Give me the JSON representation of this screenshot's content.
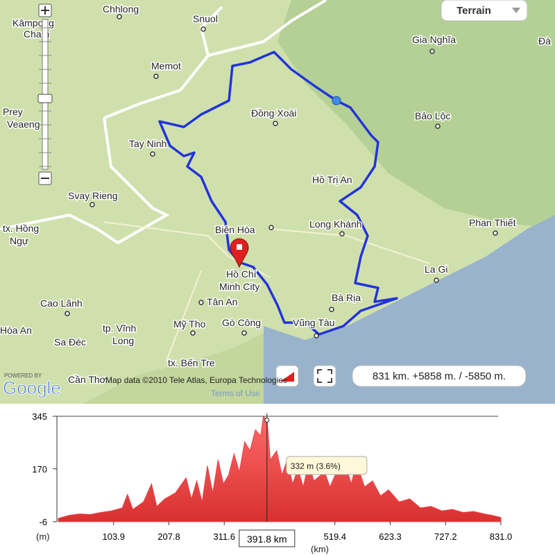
{
  "map": {
    "type_button": "Terrain",
    "labels": [
      "Chhlong",
      "Snuol",
      "Kâmpong",
      "Cham",
      "Memot",
      "Gia Nghĩa",
      "Đà",
      "Prey",
      "Veaeng",
      "Đồng Xoài",
      "Bảo Lộc",
      "Tay Ninh",
      "Hồ Trị An",
      "Svay Rieng",
      "tx. Hồng",
      "Ngự",
      "Biên Hòa",
      "Long Khánh",
      "Phan Thiết",
      "Hồ Chí",
      "Minh City",
      "La Gi",
      "Cao Lãnh",
      "Tân An",
      "Bà Rịa",
      "Hòa An",
      "tp. Vĩnh",
      "Long",
      "Mỹ Tho",
      "Gò Công",
      "Vũng Tàu",
      "Sa Đéc",
      "tx. Bến Tre",
      "Cần Thơ"
    ],
    "powered_by": "POWERED BY",
    "logo": "Google",
    "attribution": "Map data ©2010  Tele Atlas, Europa Technologies",
    "terms": "Terms of Use",
    "stats": "831 km. +5858 m. / -5850 m."
  },
  "chart_data": {
    "type": "area",
    "color": "#e8464a",
    "ylabel": "(m)",
    "xlabel": "(km)",
    "x": [
      0,
      20,
      40,
      60,
      80,
      100,
      120,
      130,
      140,
      160,
      175,
      185,
      200,
      220,
      240,
      250,
      260,
      270,
      280,
      290,
      300,
      310,
      320,
      330,
      340,
      350,
      360,
      370,
      380,
      385,
      392,
      398,
      410,
      420,
      430,
      440,
      450,
      460,
      470,
      480,
      500,
      510,
      520,
      540,
      550,
      560,
      575,
      590,
      605,
      620,
      640,
      660,
      680,
      700,
      720,
      740,
      760,
      780,
      800,
      815,
      831
    ],
    "values": [
      5,
      15,
      20,
      18,
      25,
      30,
      40,
      85,
      35,
      60,
      120,
      45,
      70,
      90,
      140,
      70,
      130,
      60,
      180,
      90,
      200,
      120,
      150,
      220,
      160,
      260,
      230,
      300,
      280,
      345,
      332,
      200,
      230,
      150,
      200,
      120,
      170,
      110,
      190,
      130,
      160,
      110,
      150,
      180,
      120,
      190,
      110,
      130,
      80,
      100,
      60,
      70,
      40,
      45,
      30,
      35,
      25,
      28,
      20,
      15,
      8
    ],
    "xlim": [
      0,
      831
    ],
    "ylim": [
      -6,
      345
    ],
    "xticks": [
      103.9,
      207.8,
      311.6,
      519.4,
      623.3,
      727.2,
      {
        "value": 831,
        "label": "831.0"
      }
    ],
    "yticks": [
      -6,
      170,
      345
    ],
    "cursor": {
      "x": 391.8,
      "label": "391.8 km",
      "elevation": 332,
      "tooltip": "332 m (3.6%)"
    }
  }
}
